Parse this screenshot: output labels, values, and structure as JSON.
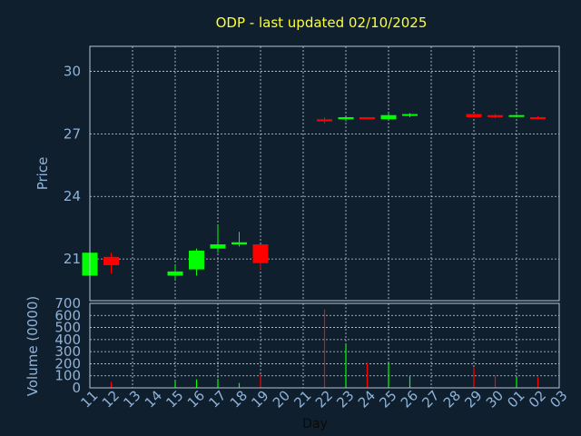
{
  "title": "ODP - last updated 02/10/2025",
  "colors": {
    "up": "#00ff00",
    "down": "#ff0000",
    "background": "#0f1f2e",
    "title": "#ffff33",
    "axis_text": "#8fb3d8"
  },
  "chart_data": [
    {
      "type": "candlestick",
      "ylabel": "Price",
      "ylim": [
        19.0,
        31.2
      ],
      "yticks": [
        21,
        24,
        27,
        30
      ],
      "grid": true,
      "candles": [
        {
          "x": 0,
          "o": 20.2,
          "h": 21.3,
          "l": 20.2,
          "c": 21.3
        },
        {
          "x": 1,
          "o": 21.1,
          "h": 21.3,
          "l": 20.3,
          "c": 20.7
        },
        {
          "x": 4,
          "o": 20.2,
          "h": 20.7,
          "l": 20.0,
          "c": 20.4
        },
        {
          "x": 5,
          "o": 20.5,
          "h": 21.5,
          "l": 20.2,
          "c": 21.4
        },
        {
          "x": 6,
          "o": 21.5,
          "h": 22.6,
          "l": 21.3,
          "c": 21.7
        },
        {
          "x": 7,
          "o": 21.7,
          "h": 22.3,
          "l": 21.6,
          "c": 21.8
        },
        {
          "x": 8,
          "o": 21.7,
          "h": 21.7,
          "l": 20.5,
          "c": 20.8
        },
        {
          "x": 11,
          "o": 27.7,
          "h": 27.8,
          "l": 27.5,
          "c": 27.6
        },
        {
          "x": 12,
          "o": 27.7,
          "h": 27.8,
          "l": 27.6,
          "c": 27.8
        },
        {
          "x": 13,
          "o": 27.8,
          "h": 27.8,
          "l": 27.7,
          "c": 27.7
        },
        {
          "x": 14,
          "o": 27.7,
          "h": 28.0,
          "l": 27.7,
          "c": 27.9
        },
        {
          "x": 15,
          "o": 27.9,
          "h": 28.0,
          "l": 27.8,
          "c": 27.95
        },
        {
          "x": 18,
          "o": 27.95,
          "h": 28.0,
          "l": 27.8,
          "c": 27.8
        },
        {
          "x": 19,
          "o": 27.9,
          "h": 27.95,
          "l": 27.75,
          "c": 27.8
        },
        {
          "x": 20,
          "o": 27.85,
          "h": 27.95,
          "l": 27.8,
          "c": 27.9
        },
        {
          "x": 21,
          "o": 27.8,
          "h": 27.85,
          "l": 27.7,
          "c": 27.75
        }
      ]
    },
    {
      "type": "bar",
      "ylabel": "Volume (0000)",
      "ylim": [
        0,
        700
      ],
      "yticks": [
        0,
        100,
        200,
        300,
        400,
        500,
        600,
        700
      ],
      "grid": true,
      "xlabel": "Day",
      "categories": [
        "11",
        "12",
        "13",
        "14",
        "15",
        "16",
        "17",
        "18",
        "19",
        "20",
        "21",
        "22",
        "23",
        "24",
        "25",
        "26",
        "27",
        "28",
        "29",
        "30",
        "01",
        "02",
        "03"
      ],
      "values": [
        0,
        50,
        0,
        0,
        60,
        70,
        75,
        40,
        110,
        0,
        0,
        650,
        360,
        210,
        210,
        100,
        0,
        0,
        170,
        100,
        90,
        90,
        0
      ],
      "colors": [
        "green",
        "red",
        "green",
        "green",
        "green",
        "green",
        "green",
        "green",
        "red",
        "green",
        "green",
        "red",
        "green",
        "red",
        "green",
        "green",
        "green",
        "green",
        "red",
        "red",
        "green",
        "red",
        "green"
      ]
    }
  ]
}
